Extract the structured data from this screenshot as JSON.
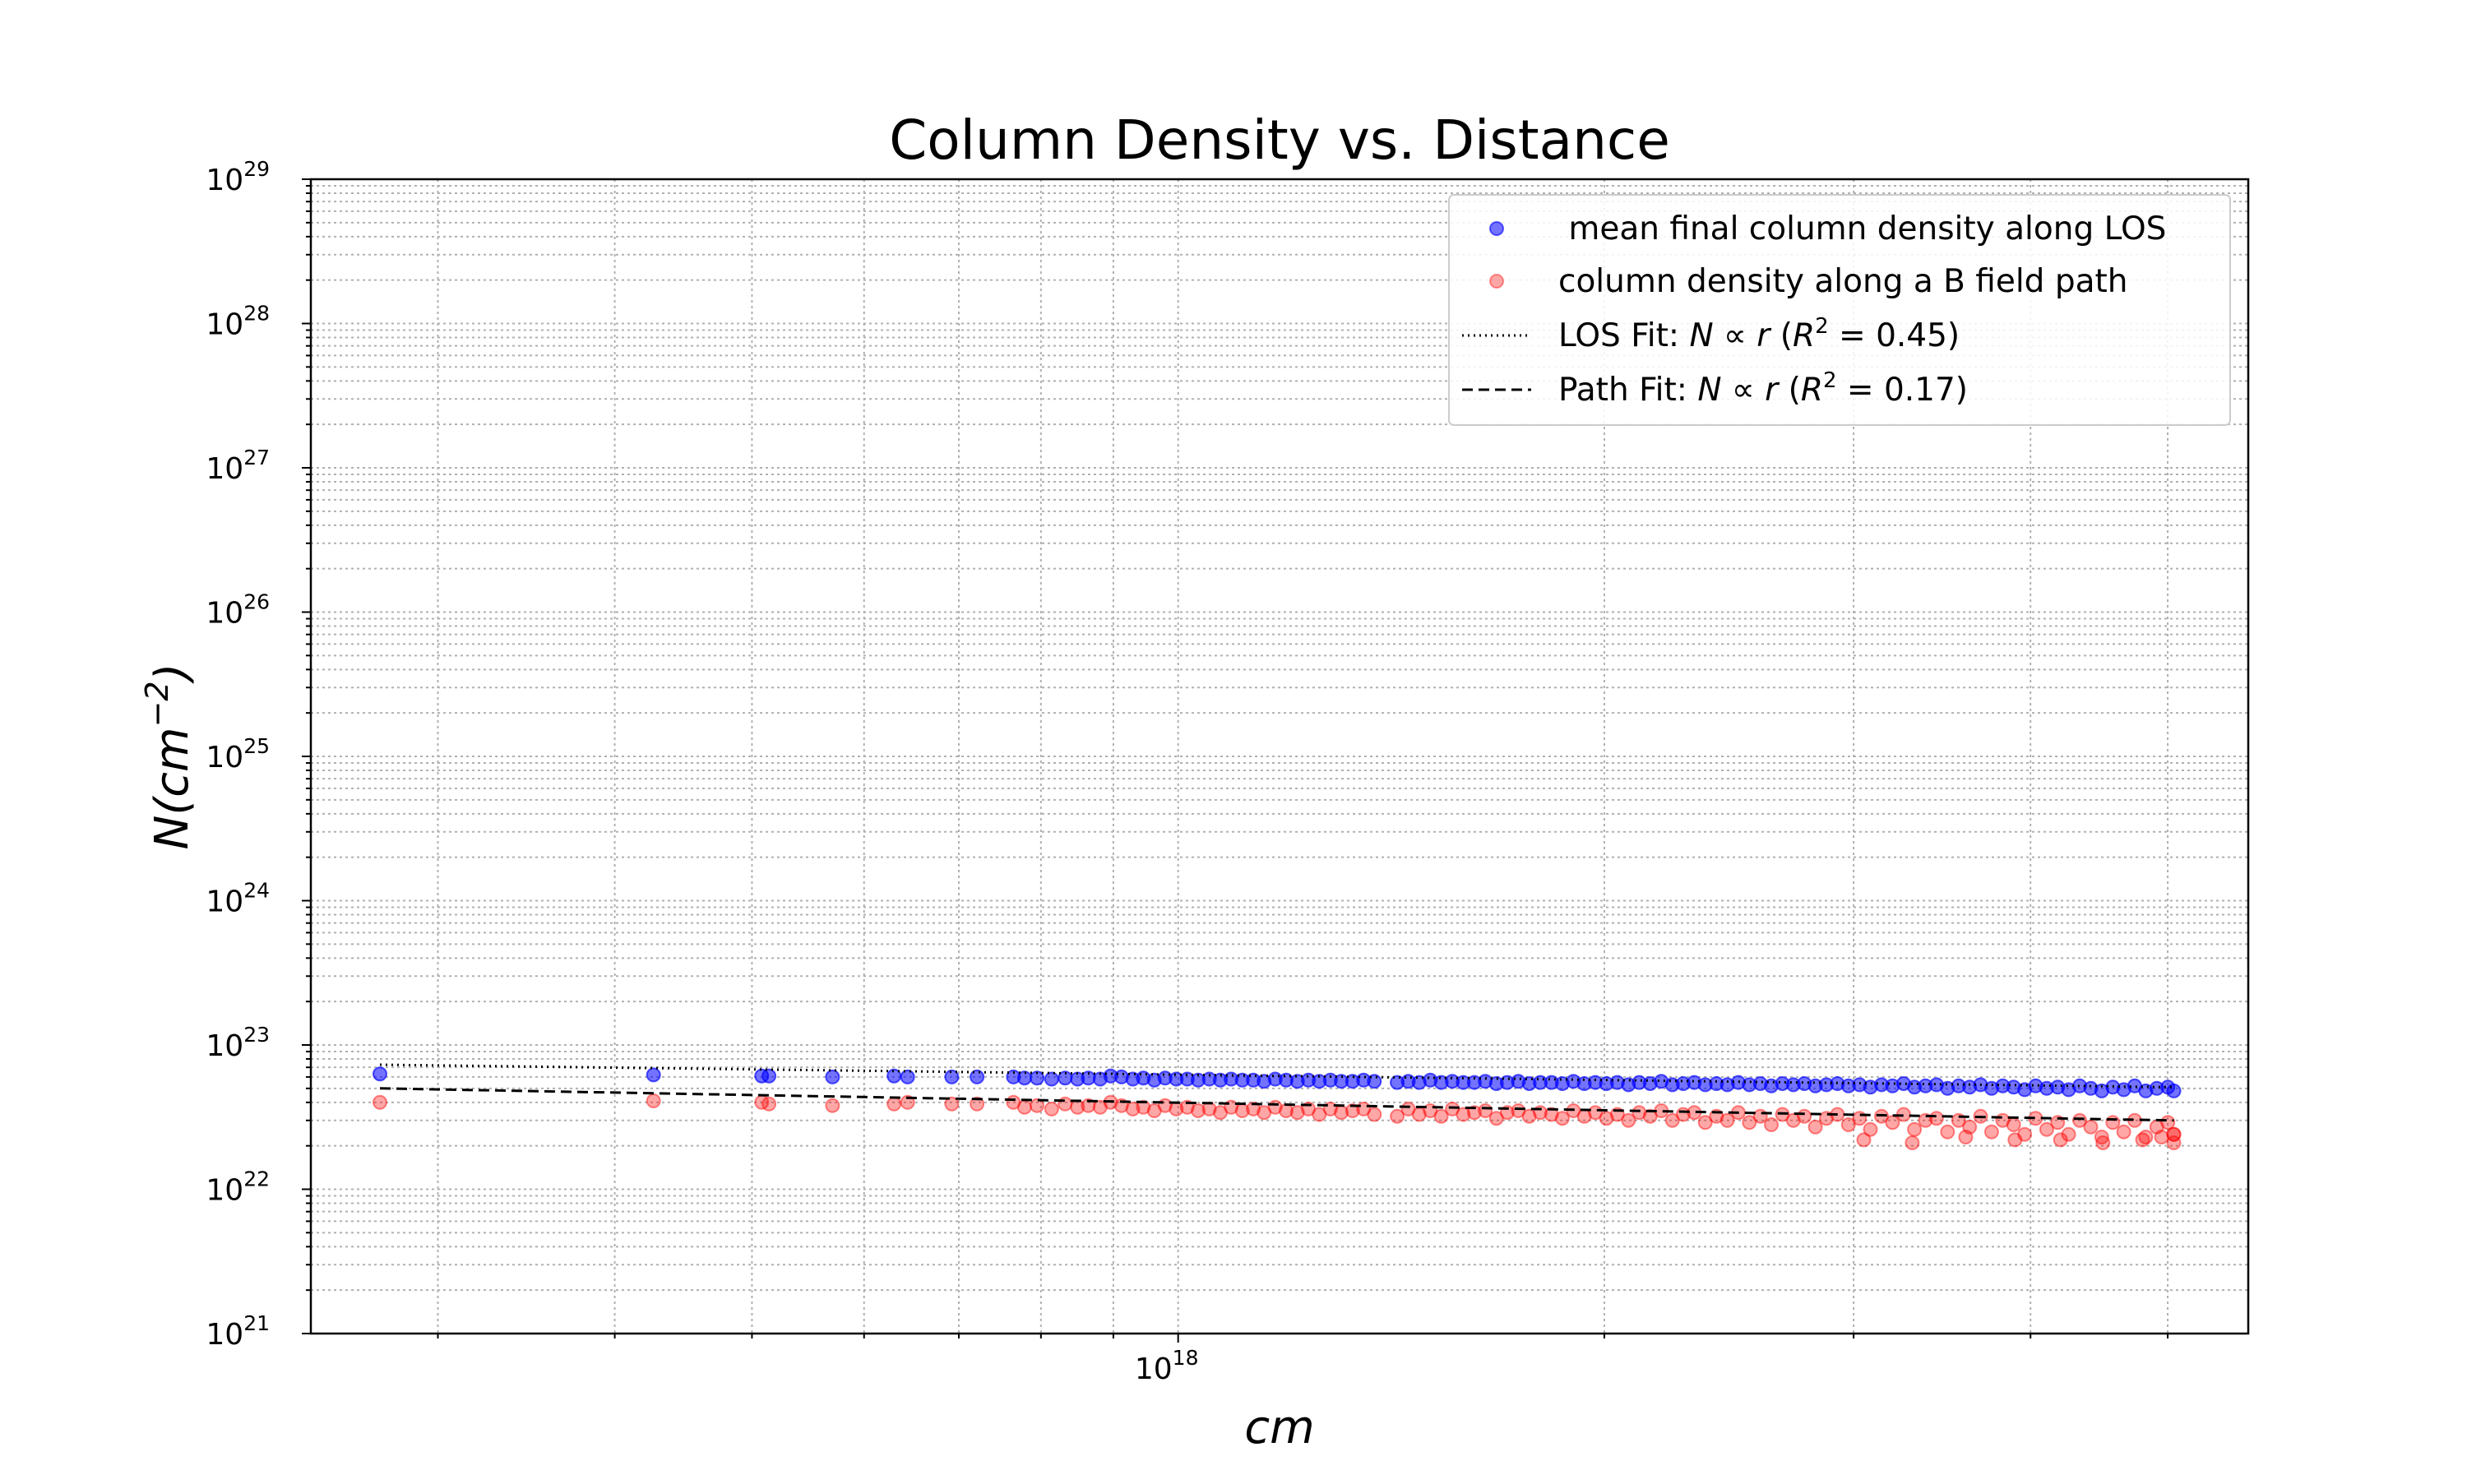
{
  "chart_data": {
    "type": "scatter",
    "title": "Column Density vs. Distance",
    "xlabel": "cm",
    "ylabel_base": "N(cm",
    "ylabel_exp": "−2",
    "ylabel_close": ")",
    "xscale": "log",
    "yscale": "log",
    "xlim": [
      2.44e+17,
      5.7e+18
    ],
    "ylim": [
      1e+21,
      1e+29
    ],
    "grid": true,
    "legend_position": "top-right",
    "x_major_ticks": [
      {
        "value": 1e+18,
        "base": "10",
        "exp": "18"
      }
    ],
    "y_major_ticks": [
      {
        "value": 1e+21,
        "base": "10",
        "exp": "21"
      },
      {
        "value": 1e+22,
        "base": "10",
        "exp": "22"
      },
      {
        "value": 1e+23,
        "base": "10",
        "exp": "23"
      },
      {
        "value": 1e+24,
        "base": "10",
        "exp": "24"
      },
      {
        "value": 1e+25,
        "base": "10",
        "exp": "25"
      },
      {
        "value": 1e+26,
        "base": "10",
        "exp": "26"
      },
      {
        "value": 1e+27,
        "base": "10",
        "exp": "27"
      },
      {
        "value": 1e+28,
        "base": "10",
        "exp": "28"
      },
      {
        "value": 1e+29,
        "base": "10",
        "exp": "29"
      }
    ],
    "series": [
      {
        "name": " mean final column density along LOS",
        "kind": "scatter",
        "color": "#0000ff",
        "alpha": 0.55,
        "x": [
          2.73e+17,
          4.26e+17,
          5.08e+17,
          5.14e+17,
          5.7e+17,
          6.3e+17,
          6.44e+17,
          6.92e+17,
          7.21e+17,
          7.65e+17,
          7.79e+17,
          7.95e+17,
          8.14e+17,
          8.32e+17,
          8.49e+17,
          8.64e+17,
          8.81e+17,
          8.96e+17,
          9.12e+17,
          9.29e+17,
          9.45e+17,
          9.62e+17,
          9.79e+17,
          9.97e+17,
          1.015e+18,
          1.033e+18,
          1.052e+18,
          1.071e+18,
          1.09e+18,
          1.11e+18,
          1.13e+18,
          1.15e+18,
          1.171e+18,
          1.192e+18,
          1.214e+18,
          1.236e+18,
          1.258e+18,
          1.281e+18,
          1.304e+18,
          1.328e+18,
          1.352e+18,
          1.376e+18,
          1.428e+18,
          1.454e+18,
          1.48e+18,
          1.507e+18,
          1.534e+18,
          1.562e+18,
          1.59e+18,
          1.619e+18,
          1.648e+18,
          1.678e+18,
          1.708e+18,
          1.739e+18,
          1.77e+18,
          1.802e+18,
          1.835e+18,
          1.868e+18,
          1.902e+18,
          1.936e+18,
          1.971e+18,
          2.007e+18,
          2.043e+18,
          2.08e+18,
          2.117e+18,
          2.155e+18,
          2.194e+18,
          2.234e+18,
          2.274e+18,
          2.315e+18,
          2.357e+18,
          2.4e+18,
          2.443e+18,
          2.487e+18,
          2.532e+18,
          2.578e+18,
          2.624e+18,
          2.672e+18,
          2.72e+18,
          2.769e+18,
          2.819e+18,
          2.87e+18,
          2.922e+18,
          2.975e+18,
          3.029e+18,
          3.083e+18,
          3.139e+18,
          3.196e+18,
          3.254e+18,
          3.312e+18,
          3.372e+18,
          3.433e+18,
          3.495e+18,
          3.559e+18,
          3.623e+18,
          3.688e+18,
          3.755e+18,
          3.823e+18,
          3.892e+18,
          3.962e+18,
          4.034e+18,
          4.107e+18,
          4.181e+18,
          4.256e+18,
          4.333e+18,
          4.412e+18,
          4.491e+18,
          4.573e+18,
          4.655e+18,
          4.739e+18,
          4.825e+18,
          4.912e+18,
          5.001e+18,
          5.05e+18
        ],
        "y": [
          6.3e+22,
          6.2e+22,
          6.1e+22,
          6.1e+22,
          6e+22,
          6.1e+22,
          6e+22,
          6e+22,
          6e+22,
          6e+22,
          5.9e+22,
          5.9e+22,
          5.8e+22,
          5.9e+22,
          5.8e+22,
          5.9e+22,
          5.8e+22,
          6.1e+22,
          6e+22,
          5.8e+22,
          5.9e+22,
          5.7e+22,
          5.9e+22,
          5.8e+22,
          5.8e+22,
          5.7e+22,
          5.8e+22,
          5.7e+22,
          5.8e+22,
          5.7e+22,
          5.7e+22,
          5.6e+22,
          5.8e+22,
          5.7e+22,
          5.6e+22,
          5.7e+22,
          5.6e+22,
          5.7e+22,
          5.6e+22,
          5.6e+22,
          5.7e+22,
          5.6e+22,
          5.5e+22,
          5.6e+22,
          5.5e+22,
          5.7e+22,
          5.5e+22,
          5.6e+22,
          5.5e+22,
          5.5e+22,
          5.6e+22,
          5.4e+22,
          5.5e+22,
          5.6e+22,
          5.4e+22,
          5.5e+22,
          5.5e+22,
          5.4e+22,
          5.6e+22,
          5.4e+22,
          5.5e+22,
          5.4e+22,
          5.5e+22,
          5.3e+22,
          5.5e+22,
          5.4e+22,
          5.6e+22,
          5.3e+22,
          5.4e+22,
          5.5e+22,
          5.3e+22,
          5.4e+22,
          5.3e+22,
          5.5e+22,
          5.3e+22,
          5.4e+22,
          5.2e+22,
          5.4e+22,
          5.3e+22,
          5.4e+22,
          5.2e+22,
          5.3e+22,
          5.4e+22,
          5.2e+22,
          5.3e+22,
          5.1e+22,
          5.3e+22,
          5.2e+22,
          5.4e+22,
          5.1e+22,
          5.2e+22,
          5.3e+22,
          5e+22,
          5.2e+22,
          5.1e+22,
          5.3e+22,
          5e+22,
          5.2e+22,
          5.1e+22,
          4.9e+22,
          5.2e+22,
          5e+22,
          5.1e+22,
          4.9e+22,
          5.2e+22,
          5e+22,
          4.8e+22,
          5.1e+22,
          4.9e+22,
          5.2e+22,
          4.8e+22,
          5e+22,
          5.1e+22,
          4.8e+22
        ]
      },
      {
        "name": "column density along a B field path",
        "kind": "scatter",
        "color": "#ff0000",
        "alpha": 0.35,
        "x": [
          2.73e+17,
          4.26e+17,
          5.08e+17,
          5.14e+17,
          5.7e+17,
          6.3e+17,
          6.44e+17,
          6.92e+17,
          7.21e+17,
          7.65e+17,
          7.79e+17,
          7.95e+17,
          8.14e+17,
          8.32e+17,
          8.49e+17,
          8.64e+17,
          8.81e+17,
          8.96e+17,
          9.12e+17,
          9.29e+17,
          9.45e+17,
          9.62e+17,
          9.79e+17,
          9.97e+17,
          1.015e+18,
          1.033e+18,
          1.052e+18,
          1.071e+18,
          1.09e+18,
          1.11e+18,
          1.13e+18,
          1.15e+18,
          1.171e+18,
          1.192e+18,
          1.214e+18,
          1.236e+18,
          1.258e+18,
          1.281e+18,
          1.304e+18,
          1.328e+18,
          1.352e+18,
          1.376e+18,
          1.428e+18,
          1.454e+18,
          1.48e+18,
          1.507e+18,
          1.534e+18,
          1.562e+18,
          1.59e+18,
          1.619e+18,
          1.648e+18,
          1.678e+18,
          1.708e+18,
          1.739e+18,
          1.77e+18,
          1.802e+18,
          1.835e+18,
          1.868e+18,
          1.902e+18,
          1.936e+18,
          1.971e+18,
          2.007e+18,
          2.043e+18,
          2.08e+18,
          2.117e+18,
          2.155e+18,
          2.194e+18,
          2.234e+18,
          2.274e+18,
          2.315e+18,
          2.357e+18,
          2.4e+18,
          2.443e+18,
          2.487e+18,
          2.532e+18,
          2.578e+18,
          2.624e+18,
          2.672e+18,
          2.72e+18,
          2.769e+18,
          2.819e+18,
          2.87e+18,
          2.922e+18,
          2.975e+18,
          3.029e+18,
          3.083e+18,
          3.139e+18,
          3.196e+18,
          3.254e+18,
          3.312e+18,
          3.372e+18,
          3.433e+18,
          3.495e+18,
          3.559e+18,
          3.623e+18,
          3.688e+18,
          3.755e+18,
          3.823e+18,
          3.892e+18,
          3.962e+18,
          4.034e+18,
          4.107e+18,
          4.181e+18,
          4.256e+18,
          4.333e+18,
          4.412e+18,
          4.491e+18,
          4.573e+18,
          4.655e+18,
          4.739e+18,
          4.825e+18,
          4.912e+18,
          5.001e+18,
          5.05e+18,
          3.05e+18,
          3.3e+18,
          3.6e+18,
          3.9e+18,
          4.2e+18,
          4.5e+18,
          4.8e+18,
          5.05e+18,
          5.05e+18,
          4.95e+18
        ],
        "y": [
          4e+22,
          4.1e+22,
          4e+22,
          3.9e+22,
          3.8e+22,
          3.9e+22,
          4e+22,
          3.9e+22,
          3.9e+22,
          4e+22,
          3.7e+22,
          3.8e+22,
          3.6e+22,
          3.9e+22,
          3.7e+22,
          3.8e+22,
          3.7e+22,
          4e+22,
          3.8e+22,
          3.6e+22,
          3.7e+22,
          3.5e+22,
          3.8e+22,
          3.6e+22,
          3.7e+22,
          3.5e+22,
          3.6e+22,
          3.4e+22,
          3.7e+22,
          3.5e+22,
          3.6e+22,
          3.4e+22,
          3.7e+22,
          3.5e+22,
          3.4e+22,
          3.6e+22,
          3.3e+22,
          3.6e+22,
          3.4e+22,
          3.5e+22,
          3.6e+22,
          3.3e+22,
          3.2e+22,
          3.6e+22,
          3.3e+22,
          3.5e+22,
          3.2e+22,
          3.6e+22,
          3.3e+22,
          3.4e+22,
          3.5e+22,
          3.1e+22,
          3.4e+22,
          3.5e+22,
          3.2e+22,
          3.4e+22,
          3.3e+22,
          3.1e+22,
          3.5e+22,
          3.2e+22,
          3.4e+22,
          3.1e+22,
          3.3e+22,
          3e+22,
          3.4e+22,
          3.2e+22,
          3.5e+22,
          3e+22,
          3.3e+22,
          3.4e+22,
          2.9e+22,
          3.2e+22,
          3e+22,
          3.4e+22,
          2.9e+22,
          3.2e+22,
          2.8e+22,
          3.3e+22,
          3e+22,
          3.2e+22,
          2.7e+22,
          3.1e+22,
          3.3e+22,
          2.8e+22,
          3.1e+22,
          2.6e+22,
          3.2e+22,
          2.9e+22,
          3.3e+22,
          2.6e+22,
          3e+22,
          3.1e+22,
          2.5e+22,
          3e+22,
          2.7e+22,
          3.2e+22,
          2.5e+22,
          3e+22,
          2.8e+22,
          2.4e+22,
          3.1e+22,
          2.6e+22,
          2.9e+22,
          2.4e+22,
          3e+22,
          2.7e+22,
          2.3e+22,
          2.9e+22,
          2.5e+22,
          3e+22,
          2.3e+22,
          2.7e+22,
          2.9e+22,
          2.4e+22,
          2.2e+22,
          2.1e+22,
          2.3e+22,
          2.2e+22,
          2.2e+22,
          2.1e+22,
          2.2e+22,
          2.1e+22,
          2.4e+22,
          2.3e+22
        ]
      }
    ],
    "fits": [
      {
        "name": "LOS Fit",
        "kind": "line",
        "style": "dotted",
        "color": "#000000",
        "x": [
          2.73e+17,
          5.05e+18
        ],
        "y": [
          7.3e+22,
          5.1e+22
        ],
        "legend_prefix": "LOS Fit: ",
        "legend_sym": "N ∝ r",
        "legend_r2_open": " (",
        "legend_r2_var": "R",
        "legend_r2_exp": "2",
        "legend_r2_value": " = 0.45)"
      },
      {
        "name": "Path Fit",
        "kind": "line",
        "style": "dashed",
        "color": "#000000",
        "x": [
          2.73e+17,
          5.05e+18
        ],
        "y": [
          5e+22,
          3e+22
        ],
        "legend_prefix": "Path Fit: ",
        "legend_sym": "N ∝ r",
        "legend_r2_open": " (",
        "legend_r2_var": "R",
        "legend_r2_exp": "2",
        "legend_r2_value": " = 0.17)"
      }
    ]
  }
}
